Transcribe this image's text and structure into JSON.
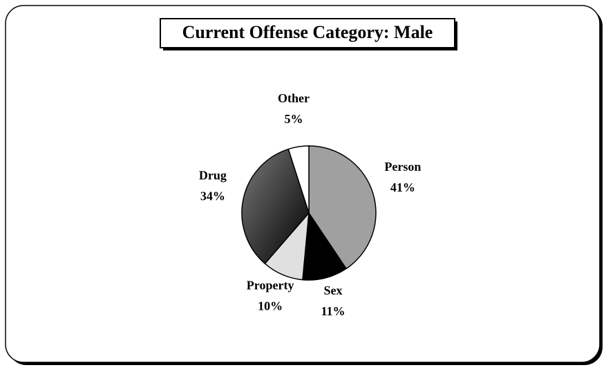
{
  "chart_data": {
    "type": "pie",
    "title": "Current Offense Category: Male",
    "categories": [
      "Person",
      "Sex",
      "Property",
      "Drug",
      "Other"
    ],
    "values": [
      41,
      11,
      10,
      34,
      5
    ],
    "value_labels": [
      "41%",
      "11%",
      "10%",
      "34%",
      "5%"
    ],
    "colors": [
      "#a0a0a0",
      "#000000",
      "#e0e0e0",
      "#7a7a7a",
      "#ffffff"
    ]
  }
}
